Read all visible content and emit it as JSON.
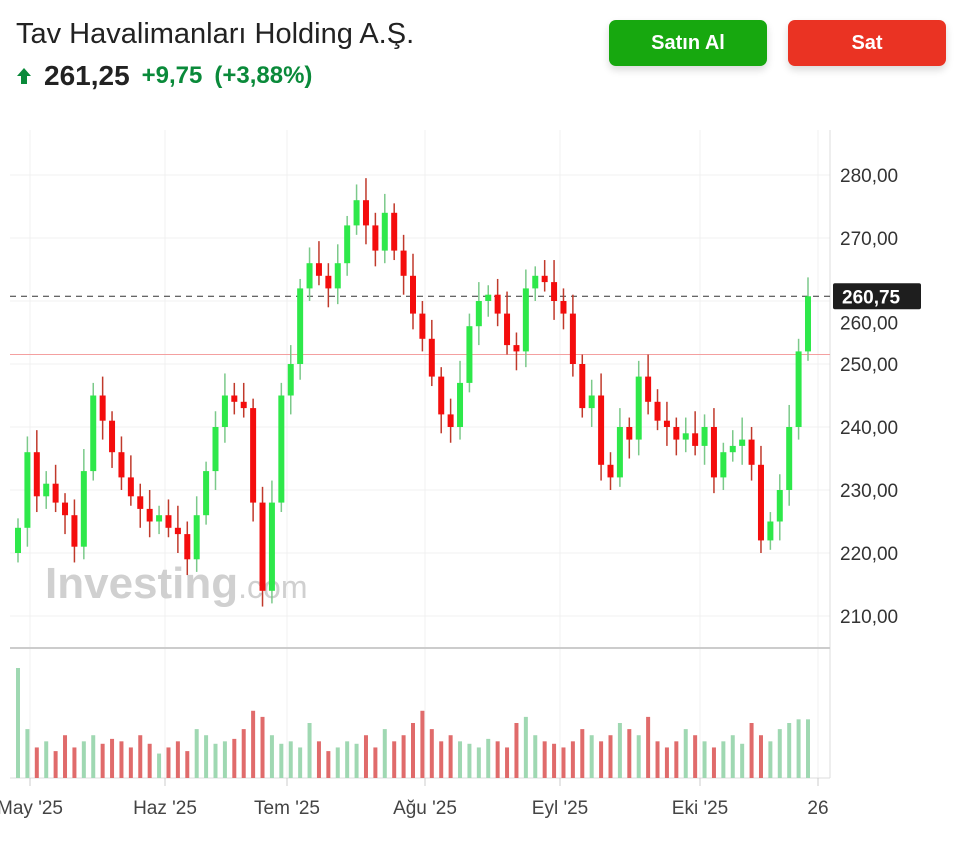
{
  "header": {
    "title": "Tav Havalimanları Holding A.Ş.",
    "price": "261,25",
    "change": "+9,75",
    "change_pct": "(+3,88%)",
    "direction_icon": "arrow-up-icon",
    "buy_label": "Satın Al",
    "sell_label": "Sat"
  },
  "colors": {
    "up": "#2ee84a",
    "down": "#f40d0d",
    "change_text": "#0a8a3a",
    "buy": "#17a80f",
    "sell": "#ea3323",
    "vol_up": "#9fd8b2",
    "vol_down": "#e06b6b"
  },
  "watermark": "Investing.com",
  "chart_data": {
    "type": "candlestick",
    "ylim": [
      205,
      285
    ],
    "yticks": [
      "280,00",
      "270,00",
      "260,00",
      "250,00",
      "240,00",
      "230,00",
      "220,00",
      "210,00"
    ],
    "ytick_values": [
      280,
      270,
      260,
      250,
      240,
      230,
      220,
      210
    ],
    "xticks": [
      "May '25",
      "Haz '25",
      "Tem '25",
      "Ağu '25",
      "Eyl '25",
      "Eki '25",
      "26"
    ],
    "last_price": 260.75,
    "last_price_label": "260,75",
    "previous_close": 251.5,
    "closes": [
      224,
      236,
      229,
      231,
      228,
      226,
      221,
      233,
      245,
      241,
      236,
      232,
      229,
      227,
      225,
      226,
      224,
      223,
      219,
      226,
      233,
      240,
      245,
      244,
      243,
      228,
      214,
      228,
      245,
      250,
      262,
      266,
      264,
      262,
      266,
      272,
      276,
      272,
      268,
      274,
      268,
      264,
      258,
      254,
      248,
      242,
      240,
      247,
      256,
      260,
      261,
      258,
      253,
      252,
      262,
      264,
      263,
      260,
      258,
      250,
      243,
      245,
      234,
      232,
      240,
      238,
      248,
      244,
      241,
      240,
      238,
      239,
      237,
      240,
      232,
      236,
      237,
      238,
      234,
      222,
      225,
      230,
      240,
      252,
      260.75
    ],
    "volume": [
      90,
      40,
      25,
      30,
      22,
      35,
      25,
      30,
      35,
      28,
      32,
      30,
      25,
      35,
      28,
      20,
      25,
      30,
      22,
      40,
      35,
      28,
      30,
      32,
      40,
      55,
      50,
      35,
      28,
      30,
      25,
      45,
      30,
      22,
      25,
      30,
      28,
      35,
      25,
      40,
      30,
      35,
      45,
      55,
      40,
      30,
      35,
      30,
      28,
      25,
      32,
      30,
      25,
      45,
      50,
      35,
      30,
      28,
      25,
      30,
      40,
      35,
      30,
      35,
      45,
      40,
      35,
      50,
      30,
      25,
      30,
      40,
      35,
      30,
      25,
      30,
      35,
      28,
      45,
      35,
      30,
      40,
      45,
      48,
      48
    ]
  }
}
